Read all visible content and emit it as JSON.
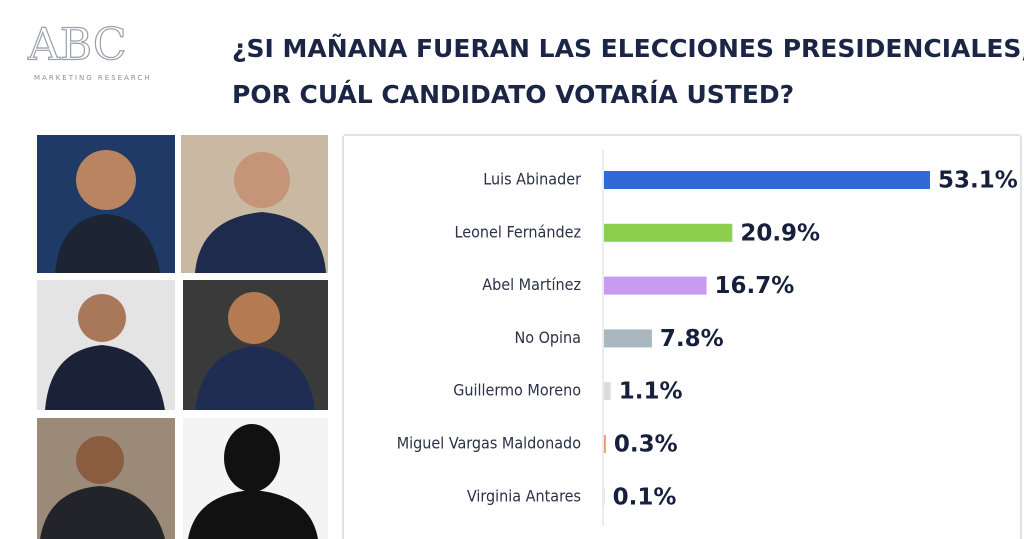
{
  "logo": {
    "name": "ABC",
    "tagline": "MARKETING RESEARCH"
  },
  "chart_data": {
    "type": "hbar",
    "title": [
      "¿SI MAÑANA FUERAN LAS ELECCIONES PRESIDENCIALES,",
      "POR CUÁL CANDIDATO VOTARÍA USTED?"
    ],
    "categories": [
      "Luis Abinader",
      "Leonel Fernández",
      "Abel Martínez",
      "No Opina",
      "Guillermo Moreno",
      "Miguel Vargas Maldonado",
      "Virginia Antares"
    ],
    "values": [
      53.1,
      20.9,
      16.7,
      7.8,
      1.1,
      0.3,
      0.1
    ],
    "value_labels": [
      "53.1%",
      "20.9%",
      "16.7%",
      "7.8%",
      "1.1%",
      "0.3%",
      "0.1%"
    ],
    "colors": [
      "#2f6ad6",
      "#8ccf4d",
      "#c99bf0",
      "#a9b7c1",
      "#dcdcdc",
      "#ef9a6a",
      "#d9d9d9"
    ]
  }
}
